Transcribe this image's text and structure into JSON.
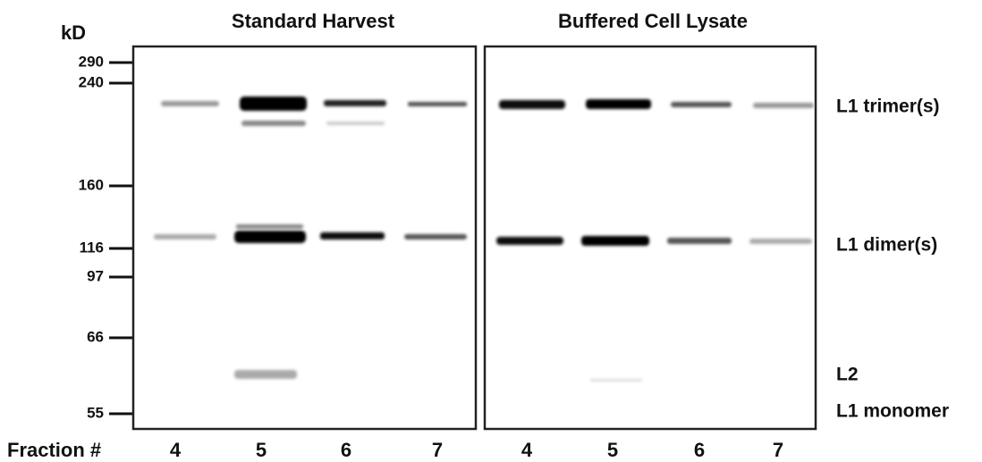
{
  "header": {
    "unit": "kD",
    "panels": [
      "Standard Harvest",
      "Buffered Cell Lysate"
    ]
  },
  "markers": [
    "290",
    "240",
    "160",
    "116",
    "97",
    "66",
    "55"
  ],
  "band_labels": [
    "L1 trimer(s)",
    "L1 dimer(s)",
    "L2",
    "L1 monomer"
  ],
  "footer": {
    "label": "Fraction #",
    "fractions": [
      "4",
      "5",
      "6",
      "7",
      "4",
      "5",
      "6",
      "7"
    ]
  }
}
